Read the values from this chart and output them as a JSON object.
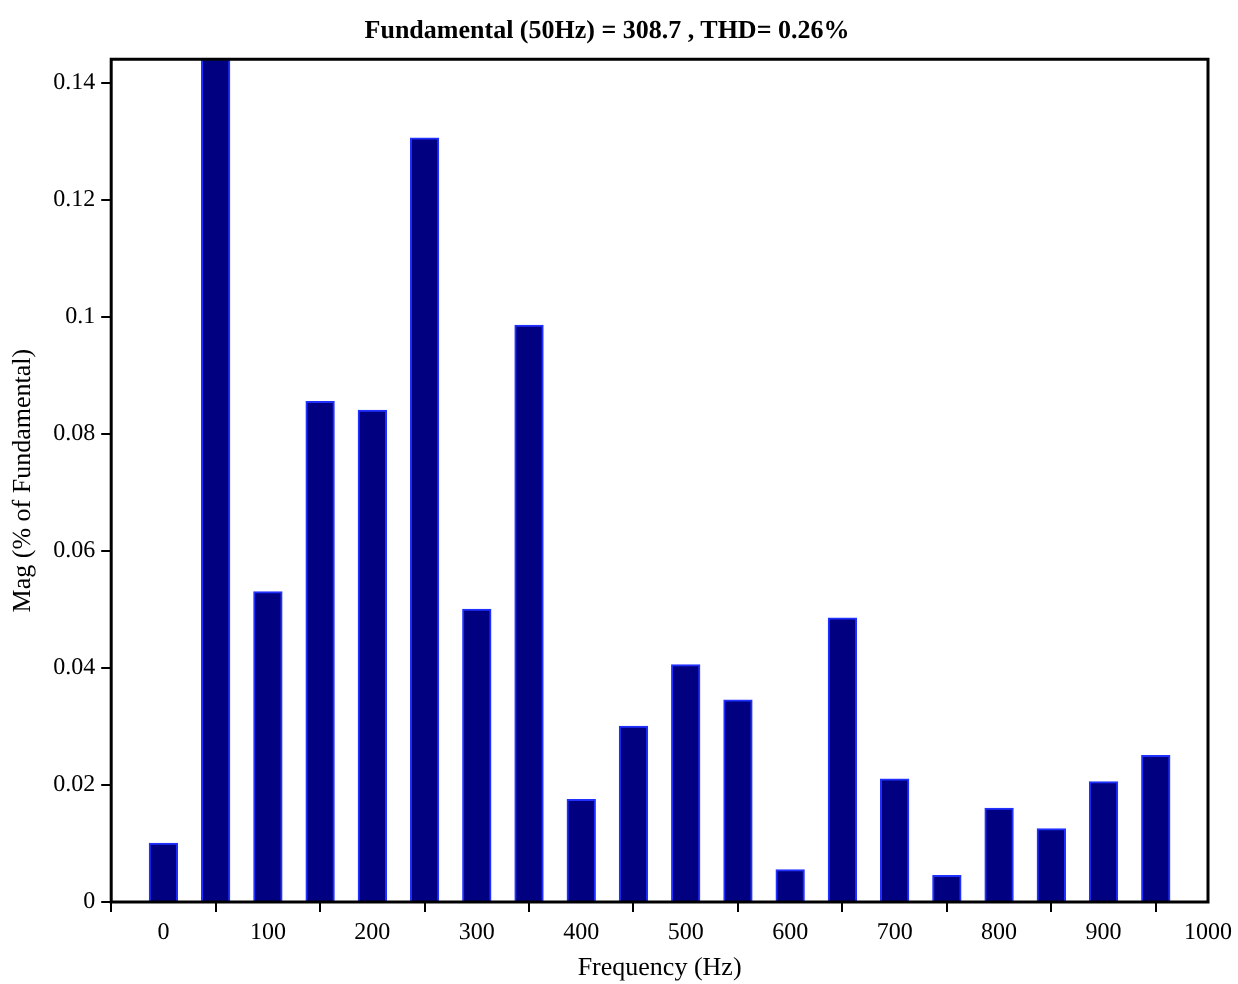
{
  "chart_data": {
    "type": "bar",
    "title": "Fundamental (50Hz) = 308.7 , THD= 0.26%",
    "xlabel": "Frequency (Hz)",
    "ylabel": "Mag (% of Fundamental)",
    "x": [
      0,
      50,
      100,
      150,
      200,
      250,
      300,
      350,
      400,
      450,
      500,
      550,
      600,
      650,
      700,
      750,
      800,
      850,
      900,
      950
    ],
    "values": [
      0.01,
      0.144,
      0.053,
      0.0855,
      0.084,
      0.1305,
      0.05,
      0.0985,
      0.0175,
      0.03,
      0.0405,
      0.0345,
      0.0055,
      0.0485,
      0.021,
      0.0045,
      0.016,
      0.0125,
      0.0205,
      0.025
    ],
    "color": "#000080",
    "xlim": [
      -50,
      1000
    ],
    "xticks": [
      0,
      100,
      200,
      300,
      400,
      500,
      600,
      700,
      800,
      900,
      1000
    ],
    "ylim": [
      0,
      0.144
    ],
    "yticks": [
      0,
      0.02,
      0.04,
      0.06,
      0.08,
      0.1,
      0.12,
      0.14
    ],
    "grid": false,
    "legend": false
  }
}
